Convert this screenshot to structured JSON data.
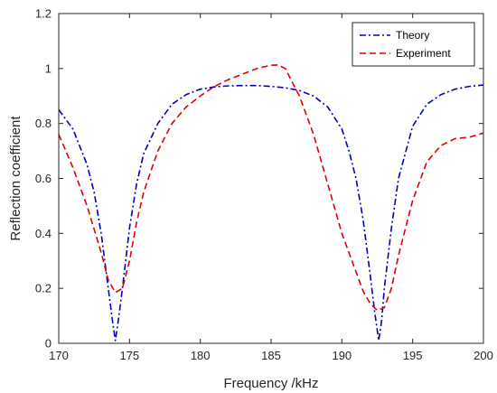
{
  "chart_data": {
    "type": "line",
    "xlabel": "Frequency /kHz",
    "ylabel": "Reflection coefficient",
    "xlim": [
      170,
      200
    ],
    "ylim": [
      0,
      1.2
    ],
    "xticks": [
      170,
      175,
      180,
      185,
      190,
      195,
      200
    ],
    "yticks": [
      0,
      0.2,
      0.4,
      0.6,
      0.8,
      1,
      1.2
    ],
    "xtick_labels": [
      "170",
      "175",
      "180",
      "185",
      "190",
      "195",
      "200"
    ],
    "ytick_labels": [
      "0",
      "0.2",
      "0.4",
      "0.6",
      "0.8",
      "1",
      "1.2"
    ],
    "grid": false,
    "legend_position": "top-right",
    "series": [
      {
        "name": "Theory",
        "color": "#0000C0",
        "style": "dash-dot",
        "x": [
          170,
          171,
          172,
          172.5,
          173,
          173.5,
          173.8,
          174,
          174.2,
          174.5,
          175,
          175.5,
          176,
          177,
          178,
          179,
          180,
          181,
          182,
          183,
          184,
          185,
          186,
          187,
          188,
          189,
          190,
          190.5,
          191,
          191.5,
          192,
          192.3,
          192.6,
          192.8,
          193,
          193.5,
          194,
          195,
          196,
          197,
          198,
          199,
          200
        ],
        "y": [
          0.85,
          0.78,
          0.65,
          0.55,
          0.4,
          0.2,
          0.08,
          0.01,
          0.08,
          0.2,
          0.42,
          0.58,
          0.69,
          0.8,
          0.87,
          0.905,
          0.925,
          0.933,
          0.937,
          0.938,
          0.938,
          0.935,
          0.93,
          0.92,
          0.9,
          0.86,
          0.78,
          0.7,
          0.6,
          0.45,
          0.25,
          0.12,
          0.01,
          0.08,
          0.2,
          0.42,
          0.6,
          0.79,
          0.87,
          0.905,
          0.925,
          0.935,
          0.94
        ]
      },
      {
        "name": "Experiment",
        "color": "#E00000",
        "style": "dashed",
        "x": [
          170,
          171,
          172,
          173,
          173.5,
          174,
          174.5,
          175,
          175.5,
          176,
          177,
          178,
          179,
          180,
          181,
          182,
          183,
          184,
          185,
          185.5,
          186,
          187,
          188,
          189,
          190,
          191,
          191.5,
          192,
          192.5,
          193,
          193.5,
          194,
          195,
          196,
          197,
          198,
          199,
          200
        ],
        "y": [
          0.76,
          0.64,
          0.5,
          0.33,
          0.23,
          0.185,
          0.2,
          0.3,
          0.44,
          0.55,
          0.7,
          0.8,
          0.86,
          0.9,
          0.935,
          0.96,
          0.98,
          1.0,
          1.012,
          1.013,
          1.0,
          0.9,
          0.76,
          0.58,
          0.4,
          0.26,
          0.19,
          0.145,
          0.12,
          0.13,
          0.2,
          0.32,
          0.52,
          0.66,
          0.72,
          0.745,
          0.75,
          0.765
        ]
      }
    ]
  }
}
